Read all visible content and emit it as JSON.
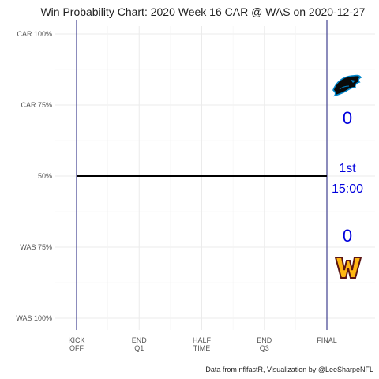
{
  "chart_data": {
    "type": "line",
    "title": "Win Probability Chart: 2020 Week 16 CAR @ WAS on 2020-12-27",
    "caption": "Data from nflfastR, Visualization by @LeeSharpeNFL",
    "xlabel": "",
    "ylabel": "",
    "x_ticks": [
      {
        "value": 0,
        "label": [
          "KICK",
          "OFF"
        ]
      },
      {
        "value": 900,
        "label": [
          "END",
          "Q1"
        ]
      },
      {
        "value": 1800,
        "label": [
          "HALF",
          "TIME"
        ]
      },
      {
        "value": 2700,
        "label": [
          "END",
          "Q3"
        ]
      },
      {
        "value": 3600,
        "label": [
          "FINAL"
        ]
      }
    ],
    "y_ticks": [
      {
        "value": 1.0,
        "label": "CAR 100%"
      },
      {
        "value": 0.75,
        "label": "CAR 75%"
      },
      {
        "value": 0.5,
        "label": "50%"
      },
      {
        "value": 0.25,
        "label": "WAS 75%"
      },
      {
        "value": 0.0,
        "label": "WAS 100%"
      }
    ],
    "xlim": [
      0,
      3600
    ],
    "ylim": [
      0,
      1
    ],
    "grid": true,
    "series": [
      {
        "values": [
          {
            "x": 0,
            "y": 0.5
          },
          {
            "x": 3600,
            "y": 0.5
          }
        ],
        "color": "#000000"
      }
    ],
    "boundary_lines": {
      "x": [
        0,
        3600
      ],
      "color": "#1a1a7a"
    },
    "scoreboard": {
      "away_team_logo": "panthers-logo-icon",
      "away_score": "0",
      "quarter": "1st",
      "clock": "15:00",
      "home_score": "0",
      "home_team_logo": "washington-w-logo-icon",
      "text_color": "#0000dd"
    }
  }
}
